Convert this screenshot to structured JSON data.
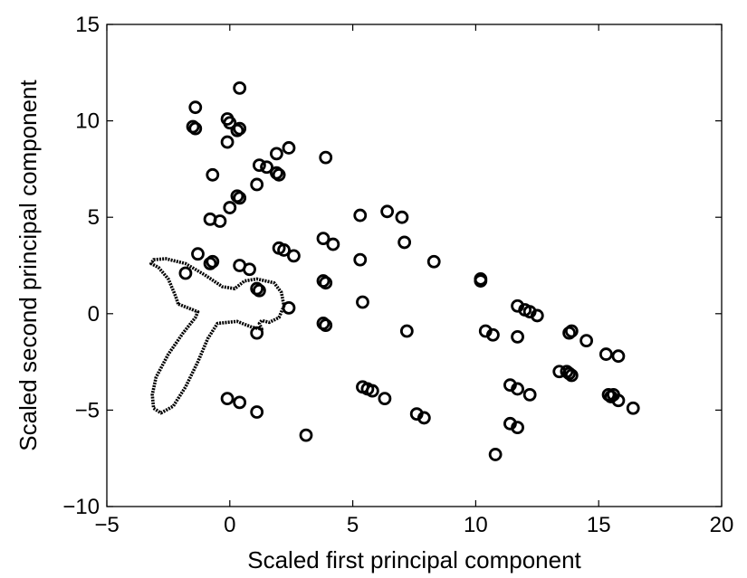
{
  "chart_data": {
    "type": "scatter",
    "title": "",
    "xlabel": "Scaled first principal component",
    "ylabel": "Scaled second principal component",
    "xlim": [
      -5,
      20
    ],
    "ylim": [
      -10,
      15
    ],
    "xticks": [
      -5,
      0,
      5,
      10,
      15,
      20
    ],
    "yticks": [
      -10,
      -5,
      0,
      5,
      10,
      15
    ],
    "grid": false,
    "legend": "none",
    "marker_color": "#000000",
    "series": [
      {
        "type": "scatter",
        "marker": "open-circle",
        "points": [
          [
            0.4,
            11.7
          ],
          [
            -1.4,
            10.7
          ],
          [
            -0.1,
            10.1
          ],
          [
            0.0,
            9.9
          ],
          [
            -1.5,
            9.7
          ],
          [
            -1.4,
            9.6
          ],
          [
            0.4,
            9.6
          ],
          [
            0.3,
            9.5
          ],
          [
            -0.1,
            8.9
          ],
          [
            2.4,
            8.6
          ],
          [
            1.9,
            8.3
          ],
          [
            3.9,
            8.1
          ],
          [
            1.2,
            7.7
          ],
          [
            1.5,
            7.6
          ],
          [
            1.9,
            7.3
          ],
          [
            2.0,
            7.2
          ],
          [
            -0.7,
            7.2
          ],
          [
            1.1,
            6.7
          ],
          [
            0.3,
            6.1
          ],
          [
            0.4,
            6.0
          ],
          [
            0.0,
            5.5
          ],
          [
            -0.8,
            4.9
          ],
          [
            -0.4,
            4.8
          ],
          [
            6.4,
            5.3
          ],
          [
            5.3,
            5.1
          ],
          [
            7.0,
            5.0
          ],
          [
            3.8,
            3.9
          ],
          [
            4.2,
            3.6
          ],
          [
            7.1,
            3.7
          ],
          [
            2.0,
            3.4
          ],
          [
            2.2,
            3.3
          ],
          [
            2.6,
            3.0
          ],
          [
            -1.3,
            3.1
          ],
          [
            -0.7,
            2.7
          ],
          [
            -0.8,
            2.6
          ],
          [
            5.3,
            2.8
          ],
          [
            8.3,
            2.7
          ],
          [
            0.4,
            2.5
          ],
          [
            0.8,
            2.3
          ],
          [
            -1.8,
            2.1
          ],
          [
            10.2,
            1.8
          ],
          [
            10.2,
            1.7
          ],
          [
            3.8,
            1.7
          ],
          [
            3.9,
            1.6
          ],
          [
            1.1,
            1.3
          ],
          [
            1.2,
            1.2
          ],
          [
            5.4,
            0.6
          ],
          [
            2.4,
            0.3
          ],
          [
            11.7,
            0.4
          ],
          [
            12.0,
            0.2
          ],
          [
            12.2,
            0.1
          ],
          [
            12.5,
            -0.1
          ],
          [
            3.8,
            -0.5
          ],
          [
            3.9,
            -0.6
          ],
          [
            1.1,
            -1.0
          ],
          [
            10.4,
            -0.9
          ],
          [
            10.7,
            -1.1
          ],
          [
            7.2,
            -0.9
          ],
          [
            13.9,
            -0.9
          ],
          [
            13.8,
            -1.0
          ],
          [
            11.7,
            -1.2
          ],
          [
            14.5,
            -1.4
          ],
          [
            15.3,
            -2.1
          ],
          [
            15.8,
            -2.2
          ],
          [
            13.4,
            -3.0
          ],
          [
            13.8,
            -3.1
          ],
          [
            13.9,
            -3.2
          ],
          [
            13.7,
            -3.0
          ],
          [
            11.4,
            -3.7
          ],
          [
            11.7,
            -3.9
          ],
          [
            12.2,
            -4.2
          ],
          [
            5.4,
            -3.8
          ],
          [
            5.6,
            -3.9
          ],
          [
            5.8,
            -4.0
          ],
          [
            6.3,
            -4.4
          ],
          [
            15.4,
            -4.2
          ],
          [
            15.6,
            -4.2
          ],
          [
            15.8,
            -4.5
          ],
          [
            16.4,
            -4.9
          ],
          [
            15.5,
            -4.3
          ],
          [
            -0.1,
            -4.4
          ],
          [
            0.4,
            -4.6
          ],
          [
            1.1,
            -5.1
          ],
          [
            7.6,
            -5.2
          ],
          [
            7.9,
            -5.4
          ],
          [
            11.4,
            -5.7
          ],
          [
            11.7,
            -5.9
          ],
          [
            3.1,
            -6.3
          ],
          [
            10.8,
            -7.3
          ]
        ]
      },
      {
        "type": "line",
        "marker": "small-dot-curve",
        "closed": true,
        "points": [
          [
            -2.1,
            0.5
          ],
          [
            -2.2,
            0.9
          ],
          [
            -2.5,
            1.8
          ],
          [
            -2.9,
            2.4
          ],
          [
            -3.2,
            2.6
          ],
          [
            -3.1,
            2.8
          ],
          [
            -2.6,
            2.85
          ],
          [
            -1.8,
            2.6
          ],
          [
            -1.0,
            2.0
          ],
          [
            -0.3,
            1.4
          ],
          [
            0.2,
            1.3
          ],
          [
            0.6,
            1.7
          ],
          [
            1.1,
            1.8
          ],
          [
            1.8,
            1.6
          ],
          [
            2.1,
            1.1
          ],
          [
            2.2,
            0.4
          ],
          [
            2.0,
            -0.2
          ],
          [
            1.6,
            -0.45
          ],
          [
            1.3,
            -0.35
          ],
          [
            1.2,
            -0.5
          ],
          [
            1.3,
            -0.8
          ],
          [
            0.9,
            -0.7
          ],
          [
            0.3,
            -0.4
          ],
          [
            -0.5,
            -0.5
          ],
          [
            -0.9,
            -1.3
          ],
          [
            -1.3,
            -2.5
          ],
          [
            -1.8,
            -3.8
          ],
          [
            -2.3,
            -4.8
          ],
          [
            -2.8,
            -5.15
          ],
          [
            -3.1,
            -4.9
          ],
          [
            -3.15,
            -4.2
          ],
          [
            -3.0,
            -3.3
          ],
          [
            -2.5,
            -2.1
          ],
          [
            -1.9,
            -1.0
          ],
          [
            -1.4,
            -0.2
          ],
          [
            -1.3,
            0.1
          ]
        ]
      }
    ]
  }
}
